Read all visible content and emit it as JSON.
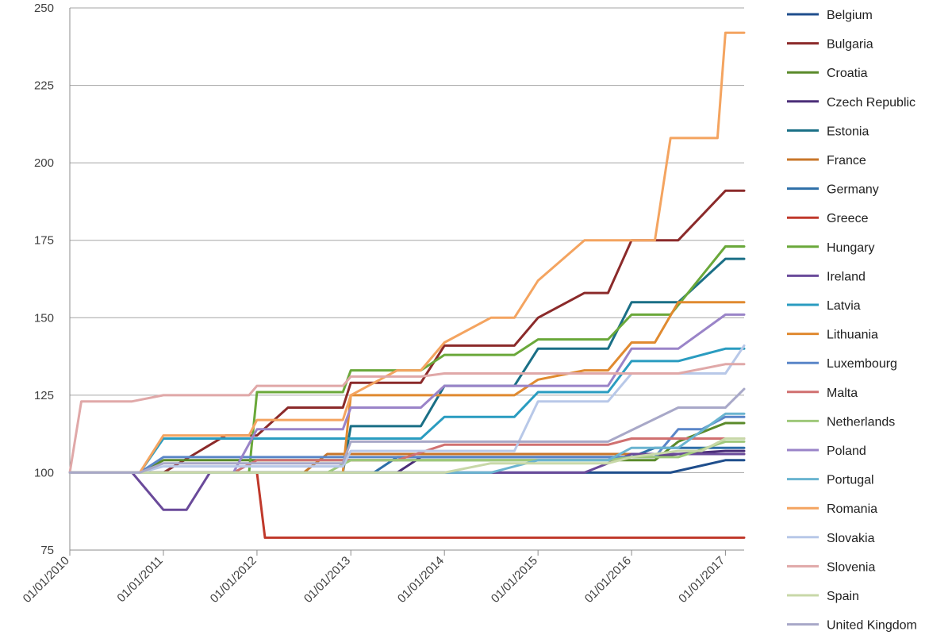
{
  "chart_data": {
    "type": "line",
    "title": "",
    "xlabel": "",
    "ylabel": "",
    "ylim": [
      75,
      250
    ],
    "xlim": [
      "2010-01-01",
      "2017-03-15"
    ],
    "yticks": [
      75,
      100,
      125,
      150,
      175,
      200,
      225,
      250
    ],
    "xticks": [
      {
        "date": "2010-01-01",
        "label": "01/01/2010"
      },
      {
        "date": "2011-01-01",
        "label": "01/01/2011"
      },
      {
        "date": "2012-01-01",
        "label": "01/01/2012"
      },
      {
        "date": "2013-01-01",
        "label": "01/01/2013"
      },
      {
        "date": "2014-01-01",
        "label": "01/01/2014"
      },
      {
        "date": "2015-01-01",
        "label": "01/01/2015"
      },
      {
        "date": "2016-01-01",
        "label": "01/01/2016"
      },
      {
        "date": "2017-01-01",
        "label": "01/01/2017"
      }
    ],
    "grid": "horizontal",
    "legend_position": "right",
    "series": [
      {
        "name": "Belgium",
        "color": "#1f4e8c",
        "points": [
          [
            "2010-01-01",
            100
          ],
          [
            "2016-06-01",
            100
          ],
          [
            "2017-01-01",
            104
          ],
          [
            "2017-03-15",
            104
          ]
        ]
      },
      {
        "name": "Bulgaria",
        "color": "#8b2a2a",
        "points": [
          [
            "2010-01-01",
            100
          ],
          [
            "2011-01-01",
            100
          ],
          [
            "2011-09-01",
            112
          ],
          [
            "2012-01-01",
            112
          ],
          [
            "2012-05-01",
            121
          ],
          [
            "2012-12-01",
            121
          ],
          [
            "2013-01-01",
            129
          ],
          [
            "2013-10-01",
            129
          ],
          [
            "2014-01-01",
            141
          ],
          [
            "2014-10-01",
            141
          ],
          [
            "2015-01-01",
            150
          ],
          [
            "2015-07-01",
            158
          ],
          [
            "2015-10-01",
            158
          ],
          [
            "2016-01-01",
            175
          ],
          [
            "2016-07-01",
            175
          ],
          [
            "2017-01-01",
            191
          ],
          [
            "2017-03-15",
            191
          ]
        ]
      },
      {
        "name": "Croatia",
        "color": "#5a8a2a",
        "points": [
          [
            "2010-01-01",
            100
          ],
          [
            "2010-10-01",
            100
          ],
          [
            "2011-01-01",
            104
          ],
          [
            "2016-04-01",
            104
          ],
          [
            "2016-07-01",
            110
          ],
          [
            "2017-01-01",
            116
          ],
          [
            "2017-03-15",
            116
          ]
        ]
      },
      {
        "name": "Czech Republic",
        "color": "#4b2e78",
        "points": [
          [
            "2010-01-01",
            100
          ],
          [
            "2013-07-01",
            100
          ],
          [
            "2013-10-01",
            105
          ],
          [
            "2016-04-01",
            105
          ],
          [
            "2016-07-01",
            106
          ],
          [
            "2017-01-01",
            107
          ],
          [
            "2017-03-15",
            107
          ]
        ]
      },
      {
        "name": "Estonia",
        "color": "#1a6f86",
        "points": [
          [
            "2010-01-01",
            100
          ],
          [
            "2012-12-01",
            100
          ],
          [
            "2013-01-01",
            115
          ],
          [
            "2013-10-01",
            115
          ],
          [
            "2014-01-01",
            128
          ],
          [
            "2014-10-01",
            128
          ],
          [
            "2015-01-01",
            140
          ],
          [
            "2015-10-01",
            140
          ],
          [
            "2016-01-01",
            155
          ],
          [
            "2016-07-01",
            155
          ],
          [
            "2017-01-01",
            169
          ],
          [
            "2017-03-15",
            169
          ]
        ]
      },
      {
        "name": "France",
        "color": "#c8762a",
        "points": [
          [
            "2010-01-01",
            100
          ],
          [
            "2012-07-01",
            100
          ],
          [
            "2012-10-01",
            106
          ],
          [
            "2017-03-15",
            106
          ]
        ]
      },
      {
        "name": "Germany",
        "color": "#2e6fa8",
        "points": [
          [
            "2010-01-01",
            100
          ],
          [
            "2013-04-01",
            100
          ],
          [
            "2013-07-01",
            105
          ],
          [
            "2016-01-01",
            105
          ],
          [
            "2016-04-01",
            108
          ],
          [
            "2017-03-15",
            108
          ]
        ]
      },
      {
        "name": "Greece",
        "color": "#c0392b",
        "points": [
          [
            "2010-01-01",
            100
          ],
          [
            "2012-01-01",
            100
          ],
          [
            "2012-02-01",
            79
          ],
          [
            "2017-03-15",
            79
          ]
        ]
      },
      {
        "name": "Hungary",
        "color": "#6aa83a",
        "points": [
          [
            "2010-01-01",
            100
          ],
          [
            "2011-12-01",
            100
          ],
          [
            "2012-01-01",
            126
          ],
          [
            "2012-12-01",
            126
          ],
          [
            "2013-01-01",
            133
          ],
          [
            "2013-10-01",
            133
          ],
          [
            "2014-01-01",
            138
          ],
          [
            "2014-10-01",
            138
          ],
          [
            "2015-01-01",
            143
          ],
          [
            "2015-10-01",
            143
          ],
          [
            "2016-01-01",
            151
          ],
          [
            "2016-06-01",
            151
          ],
          [
            "2017-01-01",
            173
          ],
          [
            "2017-03-15",
            173
          ]
        ]
      },
      {
        "name": "Ireland",
        "color": "#6a4a9a",
        "points": [
          [
            "2010-01-01",
            100
          ],
          [
            "2010-09-01",
            100
          ],
          [
            "2011-01-01",
            88
          ],
          [
            "2011-04-01",
            88
          ],
          [
            "2011-07-01",
            100
          ],
          [
            "2015-07-01",
            100
          ],
          [
            "2016-01-01",
            106
          ],
          [
            "2017-03-15",
            106
          ]
        ]
      },
      {
        "name": "Latvia",
        "color": "#2a9cc0",
        "points": [
          [
            "2010-01-01",
            100
          ],
          [
            "2010-10-01",
            100
          ],
          [
            "2011-01-01",
            111
          ],
          [
            "2013-10-01",
            111
          ],
          [
            "2014-01-01",
            118
          ],
          [
            "2014-10-01",
            118
          ],
          [
            "2015-01-01",
            126
          ],
          [
            "2015-10-01",
            126
          ],
          [
            "2016-01-01",
            136
          ],
          [
            "2016-07-01",
            136
          ],
          [
            "2017-01-01",
            140
          ],
          [
            "2017-03-15",
            140
          ]
        ]
      },
      {
        "name": "Lithuania",
        "color": "#e08a30",
        "points": [
          [
            "2010-01-01",
            100
          ],
          [
            "2012-12-01",
            100
          ],
          [
            "2013-01-01",
            125
          ],
          [
            "2014-10-01",
            125
          ],
          [
            "2015-01-01",
            130
          ],
          [
            "2015-07-01",
            133
          ],
          [
            "2015-10-01",
            133
          ],
          [
            "2016-01-01",
            142
          ],
          [
            "2016-04-01",
            142
          ],
          [
            "2016-07-01",
            155
          ],
          [
            "2017-03-15",
            155
          ]
        ]
      },
      {
        "name": "Luxembourg",
        "color": "#5a86c8",
        "points": [
          [
            "2010-01-01",
            100
          ],
          [
            "2010-10-01",
            100
          ],
          [
            "2011-01-01",
            105
          ],
          [
            "2016-04-01",
            105
          ],
          [
            "2016-07-01",
            114
          ],
          [
            "2016-10-01",
            114
          ],
          [
            "2017-01-01",
            118
          ],
          [
            "2017-03-15",
            118
          ]
        ]
      },
      {
        "name": "Malta",
        "color": "#d07070",
        "points": [
          [
            "2010-01-01",
            100
          ],
          [
            "2011-10-01",
            100
          ],
          [
            "2012-01-01",
            104
          ],
          [
            "2013-07-01",
            104
          ],
          [
            "2014-01-01",
            109
          ],
          [
            "2015-10-01",
            109
          ],
          [
            "2016-01-01",
            111
          ],
          [
            "2017-03-15",
            111
          ]
        ]
      },
      {
        "name": "Netherlands",
        "color": "#9ec87a",
        "points": [
          [
            "2010-01-01",
            100
          ],
          [
            "2012-10-01",
            100
          ],
          [
            "2013-01-01",
            104
          ],
          [
            "2015-10-01",
            104
          ],
          [
            "2016-01-01",
            105
          ],
          [
            "2016-07-01",
            105
          ],
          [
            "2017-01-01",
            110
          ],
          [
            "2017-03-15",
            110
          ]
        ]
      },
      {
        "name": "Poland",
        "color": "#9a84c8",
        "points": [
          [
            "2010-01-01",
            100
          ],
          [
            "2011-10-01",
            100
          ],
          [
            "2012-01-01",
            114
          ],
          [
            "2012-12-01",
            114
          ],
          [
            "2013-01-01",
            121
          ],
          [
            "2013-10-01",
            121
          ],
          [
            "2014-01-01",
            128
          ],
          [
            "2015-10-01",
            128
          ],
          [
            "2016-01-01",
            140
          ],
          [
            "2016-07-01",
            140
          ],
          [
            "2017-01-01",
            151
          ],
          [
            "2017-03-15",
            151
          ]
        ]
      },
      {
        "name": "Portugal",
        "color": "#6ab4d0",
        "points": [
          [
            "2010-01-01",
            100
          ],
          [
            "2014-07-01",
            100
          ],
          [
            "2015-01-01",
            104
          ],
          [
            "2015-10-01",
            104
          ],
          [
            "2016-01-01",
            108
          ],
          [
            "2016-07-01",
            108
          ],
          [
            "2017-01-01",
            119
          ],
          [
            "2017-03-15",
            119
          ]
        ]
      },
      {
        "name": "Romania",
        "color": "#f4a460",
        "points": [
          [
            "2010-01-01",
            100
          ],
          [
            "2010-10-01",
            100
          ],
          [
            "2011-01-01",
            112
          ],
          [
            "2011-12-01",
            112
          ],
          [
            "2012-01-01",
            117
          ],
          [
            "2012-12-01",
            117
          ],
          [
            "2013-01-01",
            125
          ],
          [
            "2013-07-01",
            133
          ],
          [
            "2013-10-01",
            133
          ],
          [
            "2014-01-01",
            142
          ],
          [
            "2014-07-01",
            150
          ],
          [
            "2014-10-01",
            150
          ],
          [
            "2015-01-01",
            162
          ],
          [
            "2015-07-01",
            175
          ],
          [
            "2016-04-01",
            175
          ],
          [
            "2016-06-01",
            208
          ],
          [
            "2016-12-01",
            208
          ],
          [
            "2017-01-01",
            242
          ],
          [
            "2017-03-15",
            242
          ]
        ]
      },
      {
        "name": "Slovakia",
        "color": "#b8c8e8",
        "points": [
          [
            "2010-01-01",
            100
          ],
          [
            "2010-10-01",
            100
          ],
          [
            "2011-01-01",
            102
          ],
          [
            "2012-12-01",
            102
          ],
          [
            "2013-01-01",
            107
          ],
          [
            "2014-10-01",
            107
          ],
          [
            "2015-01-01",
            123
          ],
          [
            "2015-10-01",
            123
          ],
          [
            "2016-01-01",
            132
          ],
          [
            "2017-01-01",
            132
          ],
          [
            "2017-03-15",
            141
          ]
        ]
      },
      {
        "name": "Slovenia",
        "color": "#e0a8a8",
        "points": [
          [
            "2010-01-01",
            100
          ],
          [
            "2010-02-15",
            123
          ],
          [
            "2010-09-01",
            123
          ],
          [
            "2011-01-01",
            125
          ],
          [
            "2011-12-01",
            125
          ],
          [
            "2012-01-01",
            128
          ],
          [
            "2012-12-01",
            128
          ],
          [
            "2013-01-01",
            131
          ],
          [
            "2013-10-01",
            131
          ],
          [
            "2014-01-01",
            132
          ],
          [
            "2016-07-01",
            132
          ],
          [
            "2017-01-01",
            135
          ],
          [
            "2017-03-15",
            135
          ]
        ]
      },
      {
        "name": "Spain",
        "color": "#c8d8a8",
        "points": [
          [
            "2010-01-01",
            100
          ],
          [
            "2014-01-01",
            100
          ],
          [
            "2014-07-01",
            103
          ],
          [
            "2015-10-01",
            103
          ],
          [
            "2016-01-01",
            105
          ],
          [
            "2016-07-01",
            107
          ],
          [
            "2016-10-01",
            107
          ],
          [
            "2017-01-01",
            111
          ],
          [
            "2017-03-15",
            111
          ]
        ]
      },
      {
        "name": "United Kingdom",
        "color": "#a8a8c8",
        "points": [
          [
            "2010-01-01",
            100
          ],
          [
            "2010-10-01",
            100
          ],
          [
            "2011-01-01",
            103
          ],
          [
            "2012-12-01",
            103
          ],
          [
            "2013-01-01",
            110
          ],
          [
            "2015-10-01",
            110
          ],
          [
            "2016-07-01",
            121
          ],
          [
            "2017-01-01",
            121
          ],
          [
            "2017-03-15",
            127
          ]
        ]
      }
    ]
  }
}
